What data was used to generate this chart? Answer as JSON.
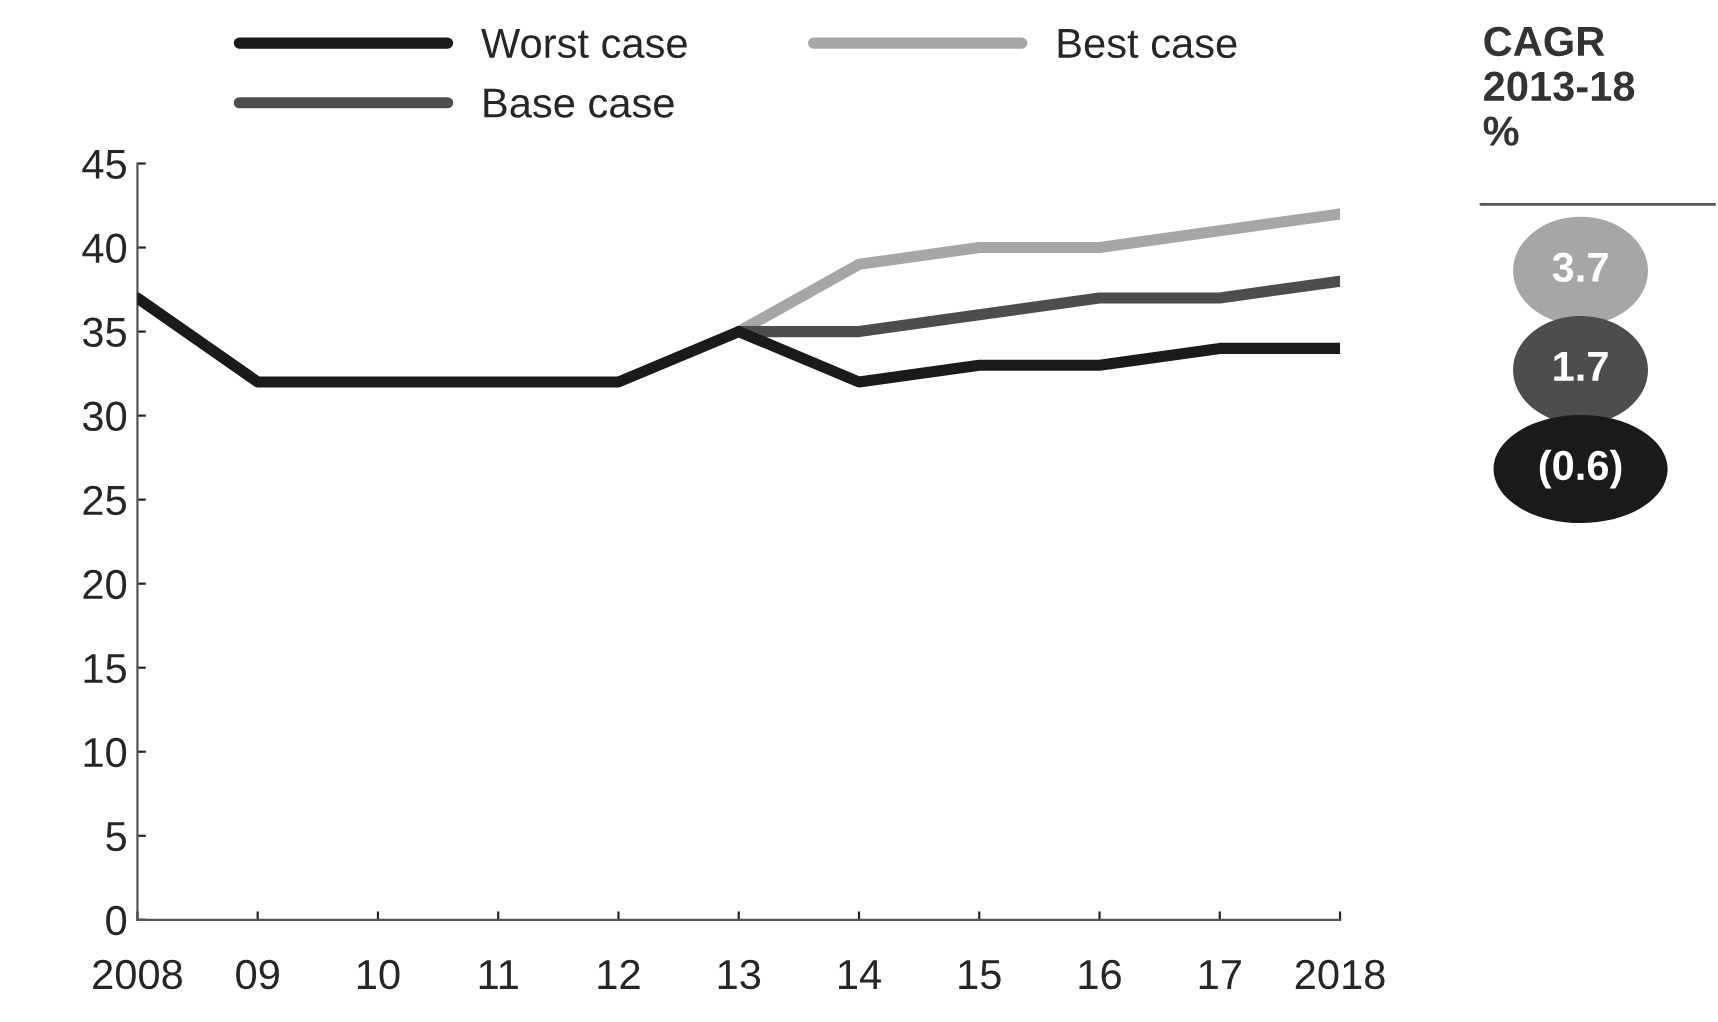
{
  "chart_data": {
    "type": "line",
    "categories": [
      "2008",
      "09",
      "10",
      "11",
      "12",
      "13",
      "14",
      "15",
      "16",
      "17",
      "2018"
    ],
    "series": [
      {
        "name": "Worst case",
        "color": "#1a1a1a",
        "values": [
          37,
          32,
          32,
          32,
          32,
          35,
          32,
          33,
          33,
          34,
          34
        ]
      },
      {
        "name": "Base case",
        "color": "#4d4d4d",
        "values": [
          null,
          null,
          null,
          null,
          null,
          35,
          35,
          36,
          37,
          37,
          38
        ]
      },
      {
        "name": "Best case",
        "color": "#a6a6a6",
        "values": [
          null,
          null,
          null,
          null,
          null,
          35,
          39,
          40,
          40,
          41,
          42
        ]
      }
    ],
    "ylim": [
      0,
      45
    ],
    "yticks": [
      0,
      5,
      10,
      15,
      20,
      25,
      30,
      35,
      40,
      45
    ],
    "legend": "top",
    "grid": false,
    "marker": "none",
    "line_style": "solid",
    "annotations": [
      "CAGR\n2013-18\n%",
      "3.7",
      "1.7",
      "(0.6)"
    ]
  }
}
